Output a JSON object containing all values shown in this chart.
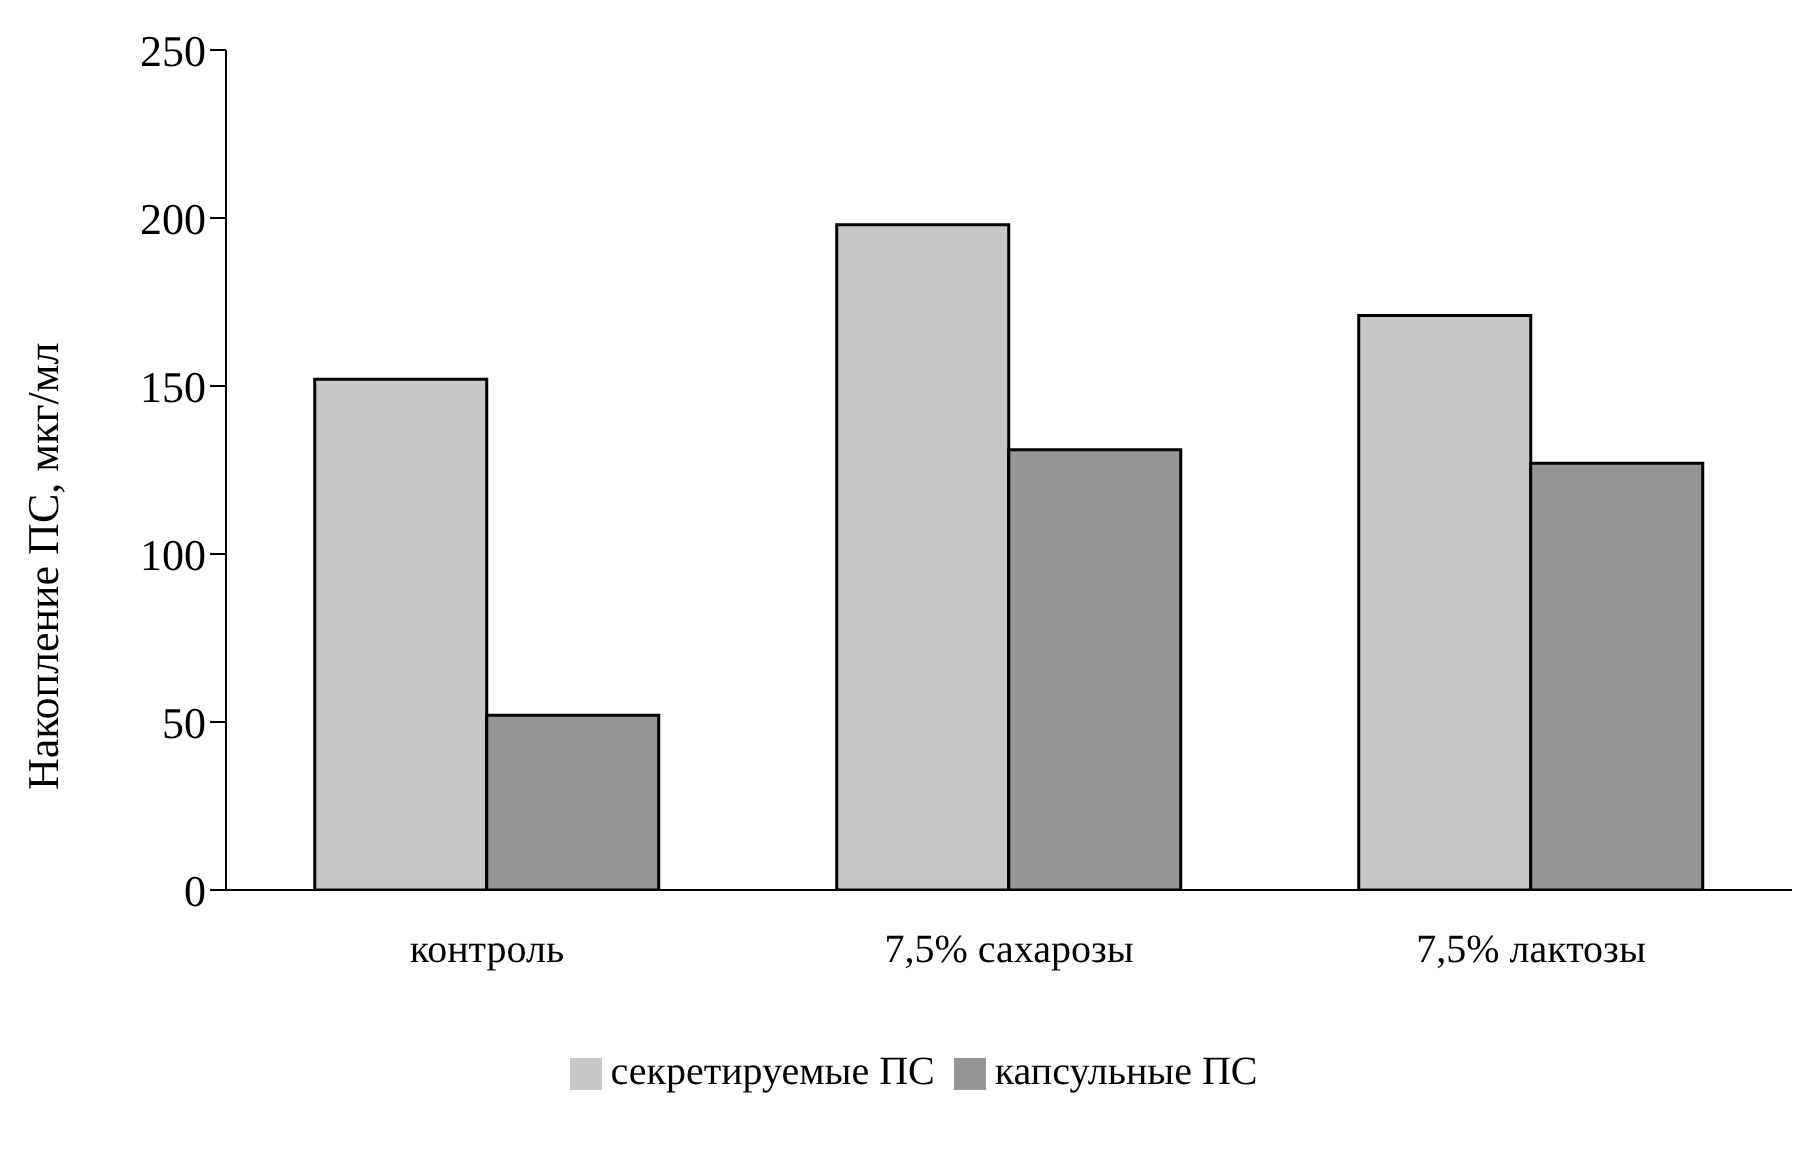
{
  "chart_data": {
    "type": "bar",
    "ylabel": "Накопление ПС, мкг/мл",
    "categories": [
      "контроль",
      "7,5% сахарозы",
      "7,5% лактозы"
    ],
    "series": [
      {
        "name": "секретируемые ПС",
        "color": "#c8c8c8",
        "values": [
          152,
          198,
          171
        ]
      },
      {
        "name": "капсульные ПС",
        "color": "#969696",
        "values": [
          52,
          131,
          127
        ]
      }
    ],
    "ylim": [
      0,
      250
    ],
    "yticks": [
      0,
      50,
      100,
      150,
      200,
      250
    ],
    "grid": false,
    "legend": "bottom"
  }
}
